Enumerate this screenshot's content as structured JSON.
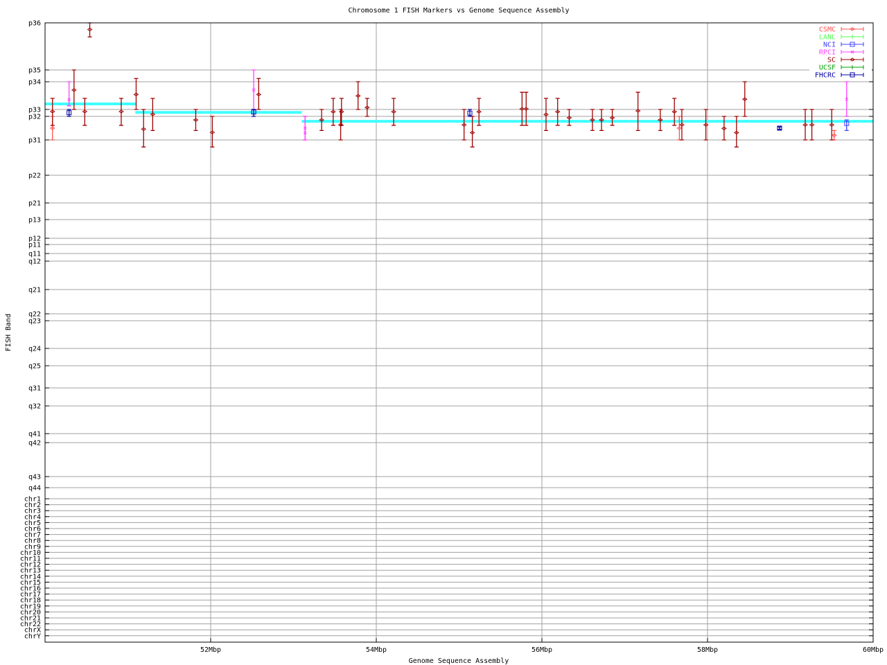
{
  "chart_data": {
    "type": "scatter",
    "title": "Chromosome 1 FISH Markers vs Genome Sequence Assembly",
    "xlabel": "Genome Sequence Assembly",
    "ylabel": "FISH Band",
    "xlim": [
      50,
      60
    ],
    "x_unit": "Mbp",
    "xticks": [
      52,
      54,
      56,
      58,
      60
    ],
    "xtick_labels": [
      "52Mbp",
      "54Mbp",
      "56Mbp",
      "58Mbp",
      "60Mbp"
    ],
    "y_axis_note": "categorical band axis; y values are fractional positions along the ytick_labels list (0 = p36)",
    "ytick_labels": [
      "p36",
      "p35",
      "p34",
      "p33",
      "p32",
      "p31",
      "p22",
      "p21",
      "p13",
      "p12",
      "p11",
      "q11",
      "q12",
      "q21",
      "q22",
      "q23",
      "q24",
      "q25",
      "q31",
      "q32",
      "q41",
      "q42",
      "q43",
      "q44",
      "chr1",
      "chr2",
      "chr3",
      "chr4",
      "chr5",
      "chr6",
      "chr7",
      "chr8",
      "chr9",
      "chr10",
      "chr11",
      "chr12",
      "chr13",
      "chr14",
      "chr15",
      "chr16",
      "chr17",
      "chr18",
      "chr19",
      "chr20",
      "chr21",
      "chr22",
      "chrX",
      "chrY"
    ],
    "grid": true,
    "legend_position": "top-right",
    "series": [
      {
        "name": "CSMC",
        "color": "#ff5050",
        "marker": "diamond",
        "points": [
          {
            "x": 50.09,
            "y": 4.5,
            "lo": 4.0,
            "hi": 5.0
          },
          {
            "x": 57.66,
            "y": 4.5,
            "lo": 4.0,
            "hi": 5.0
          },
          {
            "x": 59.53,
            "y": 4.8,
            "lo": 4.6,
            "hi": 5.0
          }
        ]
      },
      {
        "name": "LANL",
        "color": "#50ff50",
        "marker": "tick",
        "points": []
      },
      {
        "name": "NCI",
        "color": "#4040ff",
        "marker": "square",
        "points": [
          {
            "x": 59.68,
            "y": 4.3,
            "lo": 4.15,
            "hi": 4.6
          }
        ]
      },
      {
        "name": "RPCI",
        "color": "#ff40ff",
        "marker": "cross",
        "points": [
          {
            "x": 50.29,
            "y": 2.65,
            "lo": 2.0,
            "hi": 2.87
          },
          {
            "x": 52.52,
            "y": 2.3,
            "lo": 1.0,
            "hi": 3.0
          },
          {
            "x": 53.14,
            "y": 4.5,
            "lo": 4.0,
            "hi": 5.0
          },
          {
            "x": 53.14,
            "y": 4.7,
            "lo": 4.0,
            "hi": 5.0
          },
          {
            "x": 59.68,
            "y": 2.63,
            "lo": 2.0,
            "hi": 4.0
          }
        ]
      },
      {
        "name": "SC",
        "color": "#a00000",
        "marker": "diamond",
        "points": [
          {
            "x": 50.09,
            "y": 3.3,
            "lo": 2.6,
            "hi": 4.38
          },
          {
            "x": 50.35,
            "y": 2.3,
            "lo": 1.0,
            "hi": 3.0
          },
          {
            "x": 50.48,
            "y": 3.3,
            "lo": 2.6,
            "hi": 4.38
          },
          {
            "x": 50.54,
            "y": 0.14,
            "lo": 0.0,
            "hi": 0.3
          },
          {
            "x": 50.92,
            "y": 3.3,
            "lo": 2.6,
            "hi": 4.38
          },
          {
            "x": 51.1,
            "y": 2.46,
            "lo": 1.72,
            "hi": 3.0
          },
          {
            "x": 51.19,
            "y": 4.54,
            "lo": 3.0,
            "hi": 5.2
          },
          {
            "x": 51.3,
            "y": 3.7,
            "lo": 2.6,
            "hi": 4.6
          },
          {
            "x": 51.82,
            "y": 4.15,
            "lo": 3.0,
            "hi": 4.6
          },
          {
            "x": 52.02,
            "y": 4.68,
            "lo": 4.0,
            "hi": 5.2
          },
          {
            "x": 52.58,
            "y": 2.46,
            "lo": 1.72,
            "hi": 3.0
          },
          {
            "x": 53.34,
            "y": 4.15,
            "lo": 3.0,
            "hi": 4.6
          },
          {
            "x": 53.48,
            "y": 3.33,
            "lo": 2.6,
            "hi": 4.38
          },
          {
            "x": 53.57,
            "y": 4.36,
            "lo": 3.0,
            "hi": 5.0
          },
          {
            "x": 53.58,
            "y": 3.33,
            "lo": 2.6,
            "hi": 4.38
          },
          {
            "x": 53.78,
            "y": 2.51,
            "lo": 2.0,
            "hi": 3.0
          },
          {
            "x": 53.89,
            "y": 2.93,
            "lo": 2.6,
            "hi": 4.0
          },
          {
            "x": 54.21,
            "y": 3.33,
            "lo": 2.6,
            "hi": 4.38
          },
          {
            "x": 55.06,
            "y": 4.36,
            "lo": 3.0,
            "hi": 5.0
          },
          {
            "x": 55.16,
            "y": 4.69,
            "lo": 4.0,
            "hi": 5.2
          },
          {
            "x": 55.24,
            "y": 3.33,
            "lo": 2.6,
            "hi": 4.38
          },
          {
            "x": 55.76,
            "y": 2.98,
            "lo": 2.38,
            "hi": 4.38
          },
          {
            "x": 55.81,
            "y": 2.98,
            "lo": 2.38,
            "hi": 4.38
          },
          {
            "x": 56.05,
            "y": 3.73,
            "lo": 2.6,
            "hi": 4.6
          },
          {
            "x": 56.19,
            "y": 3.33,
            "lo": 2.6,
            "hi": 4.38
          },
          {
            "x": 56.33,
            "y": 4.06,
            "lo": 3.0,
            "hi": 4.38
          },
          {
            "x": 56.61,
            "y": 4.15,
            "lo": 3.0,
            "hi": 4.6
          },
          {
            "x": 56.72,
            "y": 4.15,
            "lo": 3.0,
            "hi": 4.6
          },
          {
            "x": 56.85,
            "y": 4.06,
            "lo": 3.0,
            "hi": 4.38
          },
          {
            "x": 57.16,
            "y": 3.2,
            "lo": 2.38,
            "hi": 4.6
          },
          {
            "x": 57.43,
            "y": 4.15,
            "lo": 3.0,
            "hi": 4.6
          },
          {
            "x": 57.6,
            "y": 3.33,
            "lo": 2.6,
            "hi": 4.38
          },
          {
            "x": 57.69,
            "y": 4.36,
            "lo": 3.0,
            "hi": 5.0
          },
          {
            "x": 57.98,
            "y": 4.36,
            "lo": 3.0,
            "hi": 5.0
          },
          {
            "x": 58.2,
            "y": 4.51,
            "lo": 4.0,
            "hi": 5.0
          },
          {
            "x": 58.35,
            "y": 4.69,
            "lo": 4.0,
            "hi": 5.2
          },
          {
            "x": 58.45,
            "y": 2.63,
            "lo": 2.0,
            "hi": 4.0
          },
          {
            "x": 59.18,
            "y": 4.36,
            "lo": 3.0,
            "hi": 5.0
          },
          {
            "x": 59.26,
            "y": 4.36,
            "lo": 3.0,
            "hi": 5.0
          },
          {
            "x": 59.5,
            "y": 4.36,
            "lo": 3.0,
            "hi": 5.0
          }
        ]
      },
      {
        "name": "UCSF",
        "color": "#00a000",
        "marker": "tick",
        "points": []
      },
      {
        "name": "FHCRC",
        "color": "#0000a0",
        "marker": "square",
        "points": [
          {
            "x": 50.29,
            "y": 3.47,
            "lo": 3.0,
            "hi": 4.0
          },
          {
            "x": 52.52,
            "y": 3.37,
            "lo": 3.0,
            "hi": 4.0
          },
          {
            "x": 55.13,
            "y": 3.53,
            "lo": 3.0,
            "hi": 4.0
          },
          {
            "x": 58.87,
            "y": 4.5,
            "lo": 4.45,
            "hi": 4.55
          }
        ]
      }
    ],
    "assembly_segments": {
      "color": "#40ffff",
      "segments": [
        {
          "x0": 50.0,
          "x1": 51.1,
          "y": 2.8
        },
        {
          "x0": 51.09,
          "x1": 53.1,
          "y": 3.43
        },
        {
          "x0": 53.1,
          "x1": 60.0,
          "y": 4.21
        }
      ]
    }
  }
}
